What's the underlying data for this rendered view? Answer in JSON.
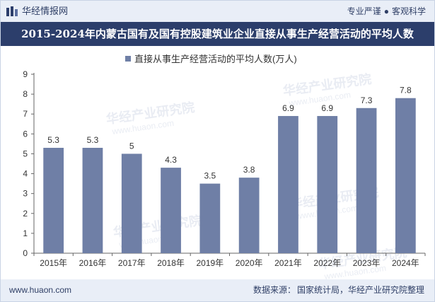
{
  "header": {
    "brand": "华经情报网",
    "tagline_left": "专业严谨",
    "tagline_right": "客观科学"
  },
  "title": "2015-2024年内蒙古国有及国有控股建筑业企业直接从事生产经营活动的平均人数",
  "footer": {
    "url": "www.huaon.com",
    "source_label": "数据来源：",
    "source_text": "国家统计局，华经产业研究院整理"
  },
  "watermarks": [
    "华经产业研究院",
    "www.huaon.com"
  ],
  "colors": {
    "bar": "#6f7fa6",
    "title_bg": "#2c3e6b",
    "topbar_bg": "#e9eef7"
  },
  "chart_data": {
    "type": "bar",
    "categories": [
      "2015年",
      "2016年",
      "2017年",
      "2018年",
      "2019年",
      "2020年",
      "2021年",
      "2022年",
      "2023年",
      "2024年"
    ],
    "series": [
      {
        "name": "直接从事生产经营活动的平均人数(万人)",
        "values": [
          5.3,
          5.3,
          5,
          4.3,
          3.5,
          3.8,
          6.9,
          6.9,
          7.3,
          7.8
        ],
        "labels": [
          "5.3",
          "5.3",
          "5",
          "4.3",
          "3.5",
          "3.8",
          "6.9",
          "6.9",
          "7.3",
          "7.8"
        ]
      }
    ],
    "ylim": [
      0,
      9
    ],
    "yticks": [
      "0",
      "1",
      "2",
      "3",
      "4",
      "5",
      "6",
      "7",
      "8",
      "9"
    ],
    "legend_position": "top",
    "grid": false
  }
}
